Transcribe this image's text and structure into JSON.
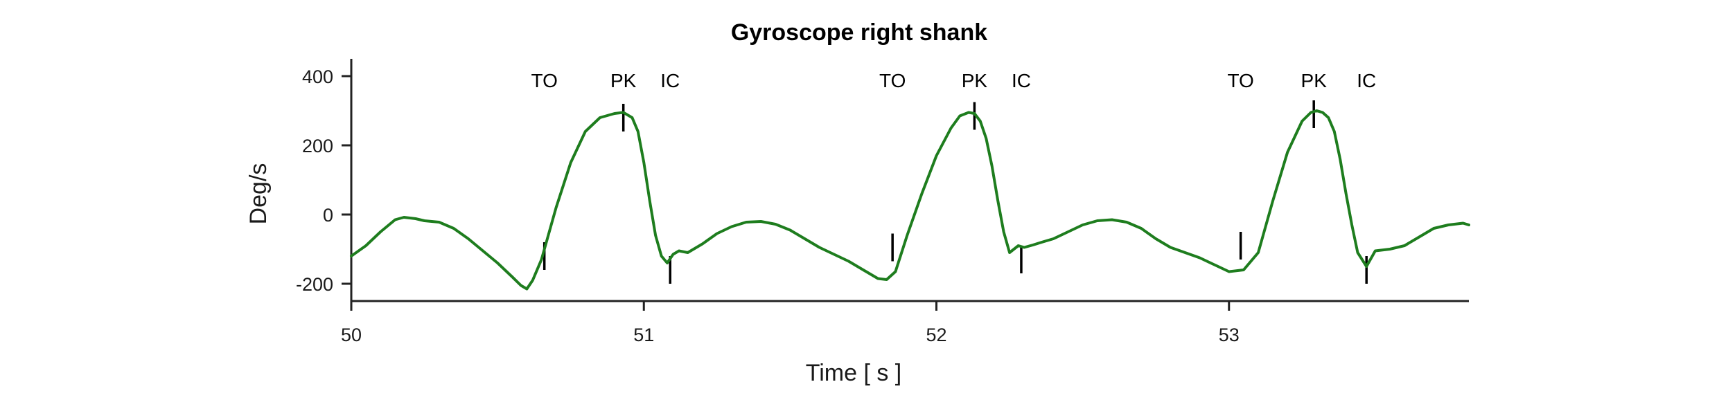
{
  "chart_data": {
    "type": "line",
    "title": "Gyroscope right shank",
    "xlabel": "Time [ s ]",
    "ylabel": "Deg/s",
    "xlim": [
      50,
      53.82
    ],
    "ylim": [
      -250,
      450
    ],
    "x_ticks": [
      50,
      51,
      52,
      53
    ],
    "x_tick_labels": [
      "50",
      "51",
      "52",
      "53"
    ],
    "y_ticks": [
      -200,
      0,
      200,
      400
    ],
    "y_tick_labels": [
      "-200",
      "0",
      "200",
      "400"
    ],
    "grid": false,
    "series": [
      {
        "color": "#1e7d1e",
        "x": [
          50.0,
          50.05,
          50.1,
          50.15,
          50.18,
          50.22,
          50.25,
          50.3,
          50.35,
          50.4,
          50.45,
          50.5,
          50.55,
          50.58,
          50.6,
          50.62,
          50.65,
          50.7,
          50.75,
          50.8,
          50.85,
          50.9,
          50.93,
          50.96,
          50.98,
          51.0,
          51.02,
          51.04,
          51.06,
          51.08,
          51.1,
          51.12,
          51.15,
          51.2,
          51.25,
          51.3,
          51.35,
          51.4,
          51.45,
          51.5,
          51.55,
          51.6,
          51.65,
          51.7,
          51.75,
          51.8,
          51.83,
          51.86,
          51.9,
          51.95,
          52.0,
          52.05,
          52.08,
          52.11,
          52.13,
          52.15,
          52.17,
          52.19,
          52.21,
          52.23,
          52.25,
          52.28,
          52.3,
          52.33,
          52.36,
          52.4,
          52.45,
          52.5,
          52.55,
          52.6,
          52.65,
          52.7,
          52.75,
          52.8,
          52.85,
          52.9,
          52.95,
          53.0,
          53.05,
          53.1,
          53.15,
          53.2,
          53.25,
          53.28,
          53.3,
          53.32,
          53.34,
          53.36,
          53.38,
          53.4,
          53.42,
          53.44,
          53.47,
          53.5,
          53.55,
          53.6,
          53.65,
          53.7,
          53.75,
          53.8,
          53.82
        ],
        "y": [
          -120,
          -90,
          -50,
          -15,
          -8,
          -12,
          -18,
          -22,
          -40,
          -70,
          -105,
          -140,
          -180,
          -205,
          -215,
          -190,
          -130,
          20,
          150,
          240,
          280,
          292,
          295,
          280,
          240,
          150,
          40,
          -60,
          -120,
          -140,
          -115,
          -105,
          -110,
          -85,
          -55,
          -35,
          -22,
          -20,
          -28,
          -45,
          -70,
          -95,
          -115,
          -135,
          -160,
          -185,
          -188,
          -165,
          -60,
          60,
          170,
          250,
          285,
          295,
          292,
          270,
          220,
          140,
          40,
          -50,
          -110,
          -90,
          -95,
          -88,
          -80,
          -70,
          -50,
          -30,
          -18,
          -15,
          -22,
          -40,
          -70,
          -95,
          -110,
          -125,
          -145,
          -165,
          -160,
          -110,
          40,
          180,
          270,
          295,
          300,
          295,
          280,
          240,
          160,
          60,
          -30,
          -110,
          -150,
          -105,
          -100,
          -90,
          -65,
          -40,
          -30,
          -25,
          -30
        ]
      }
    ],
    "events": [
      {
        "label": "TO",
        "x": 50.66,
        "y": -120
      },
      {
        "label": "PK",
        "x": 50.93,
        "y": 280
      },
      {
        "label": "IC",
        "x": 51.09,
        "y": -160
      },
      {
        "label": "TO",
        "x": 51.85,
        "y": -95
      },
      {
        "label": "PK",
        "x": 52.13,
        "y": 285
      },
      {
        "label": "IC",
        "x": 52.29,
        "y": -130
      },
      {
        "label": "TO",
        "x": 53.04,
        "y": -90
      },
      {
        "label": "PK",
        "x": 53.29,
        "y": 290
      },
      {
        "label": "IC",
        "x": 53.47,
        "y": -160
      }
    ]
  }
}
